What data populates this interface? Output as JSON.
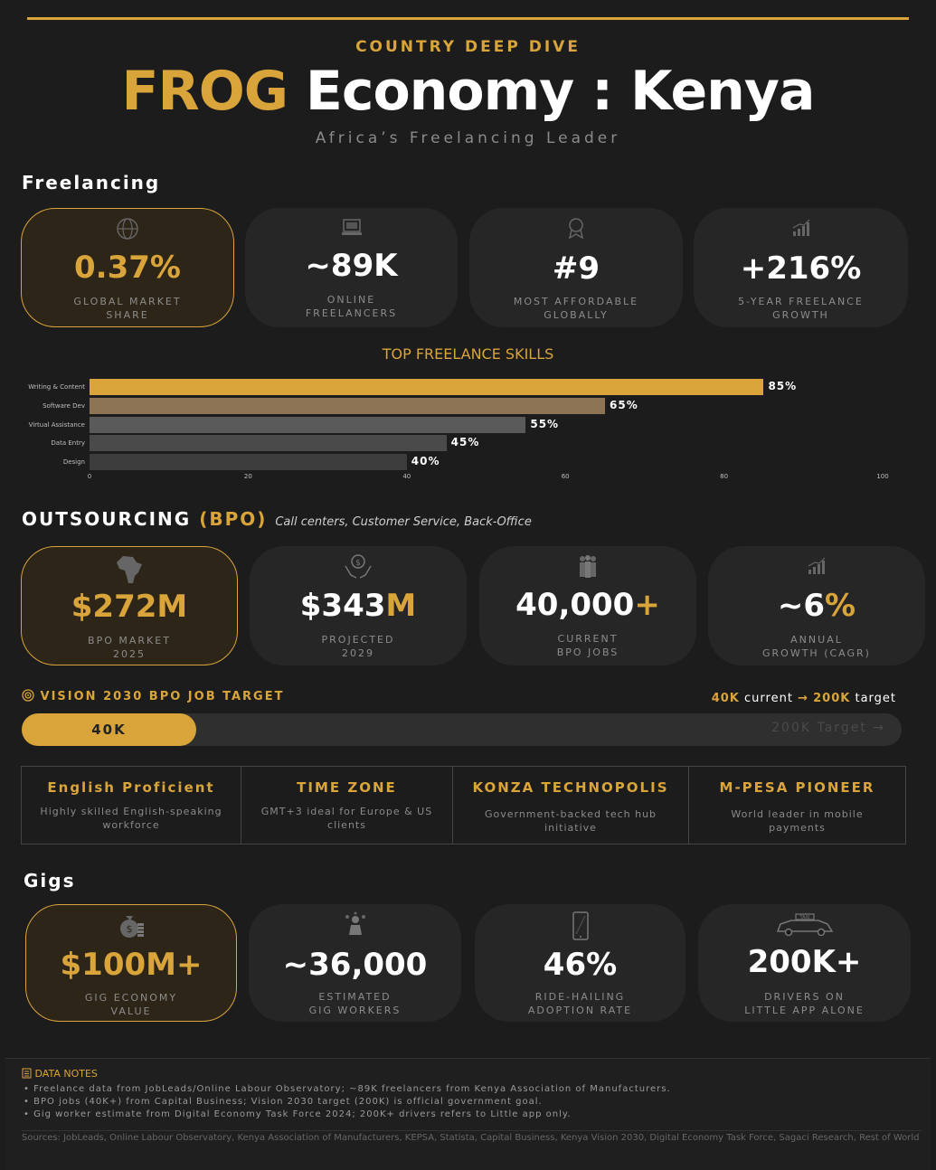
{
  "header": {
    "kicker": "COUNTRY DEEP DIVE",
    "title_gold": "FROG",
    "title_white": "Economy : Kenya",
    "subtitle": "Africa’s Freelancing Leader"
  },
  "freelancing": {
    "heading": "Freelancing",
    "cards": [
      {
        "value": "0.37%",
        "label1": "GLOBAL MARKET",
        "label2": "SHARE",
        "icon": "globe-icon"
      },
      {
        "value": "~89K",
        "label1": "ONLINE",
        "label2": "FREELANCERS",
        "icon": "laptop-icon"
      },
      {
        "value": "#9",
        "label1": "MOST AFFORDABLE",
        "label2": "GLOBALLY",
        "icon": "award-icon"
      },
      {
        "value": "+216%",
        "label1": "5-YEAR FREELANCE",
        "label2": "GROWTH",
        "icon": "growth-chart-icon"
      }
    ]
  },
  "chart_data": {
    "type": "bar",
    "orientation": "horizontal",
    "title": "TOP FREELANCE SKILLS",
    "categories": [
      "Writing & Content",
      "Software Dev",
      "Virtual Assistance",
      "Data Entry",
      "Design"
    ],
    "values": [
      85,
      65,
      55,
      45,
      40
    ],
    "value_labels": [
      "85%",
      "65%",
      "55%",
      "45%",
      "40%"
    ],
    "colors": [
      "#d9a43a",
      "#8c7455",
      "#5a5a5a",
      "#4a4a4a",
      "#3c3c3c"
    ],
    "xlim": [
      0,
      100
    ],
    "xticks": [
      "0",
      "20",
      "40",
      "60",
      "80",
      "100"
    ]
  },
  "outsourcing": {
    "heading_white": "OUTSOURCING",
    "heading_gold": "(BPO)",
    "note": "Call centers, Customer Service, Back-Office",
    "cards": [
      {
        "value_a": "$272M",
        "value_b": "",
        "label1": "BPO MARKET",
        "label2": "2025",
        "icon": "africa-map-icon"
      },
      {
        "value_a": "$343",
        "value_b": "M",
        "label1": "PROJECTED",
        "label2": "2029",
        "icon": "money-hands-icon"
      },
      {
        "value_a": "40,000",
        "value_b": "+",
        "label1": "CURRENT",
        "label2": "BPO JOBS",
        "icon": "people-icon"
      },
      {
        "value_a": "~6",
        "value_b": "%",
        "label1": "ANNUAL",
        "label2": "GROWTH (CAGR)",
        "icon": "growth-chart-icon"
      }
    ]
  },
  "vision": {
    "heading": "VISION 2030 BPO JOB TARGET",
    "current_value": "40K",
    "current_word": "current",
    "arrow": "→",
    "target_value": "200K",
    "target_word": "target",
    "fill_label": "40K",
    "track_label": "200K Target →",
    "progress_fraction": 0.2
  },
  "features": [
    {
      "title": "English Proficient",
      "desc": "Highly skilled English-speaking workforce"
    },
    {
      "title": "TIME ZONE",
      "desc": "GMT+3 ideal for Europe & US clients"
    },
    {
      "title": "KONZA TECHNOPOLIS",
      "desc": "Government-backed tech hub initiative"
    },
    {
      "title": "M-PESA PIONEER",
      "desc": "World leader in mobile payments"
    }
  ],
  "gigs": {
    "heading": "Gigs",
    "cards": [
      {
        "value": "$100M+",
        "label1": "GIG ECONOMY",
        "label2": "VALUE",
        "icon": "money-bag-icon"
      },
      {
        "value": "~36,000",
        "label1": "ESTIMATED",
        "label2": "GIG WORKERS",
        "icon": "worker-icon"
      },
      {
        "value": "46%",
        "label1": "RIDE-HAILING",
        "label2": "ADOPTION RATE",
        "icon": "smartphone-icon"
      },
      {
        "value": "200K+",
        "label1": "DRIVERS ON",
        "label2": "LITTLE APP ALONE",
        "icon": "taxi-icon"
      }
    ]
  },
  "notes": {
    "heading": "DATA NOTES",
    "items": [
      "Freelance data from JobLeads/Online Labour Observatory; ~89K freelancers from Kenya Association of Manufacturers.",
      "BPO jobs (40K+) from Capital Business; Vision 2030 target (200K) is official government goal.",
      "Gig worker estimate from Digital Economy Task Force 2024; 200K+ drivers refers to Little app only."
    ],
    "sources": "Sources: JobLeads, Online Labour Observatory, Kenya Association of Manufacturers, KEPSA, Statista, Capital Business, Kenya Vision 2030, Digital Economy Task Force, Sagaci Research, Rest of World"
  }
}
